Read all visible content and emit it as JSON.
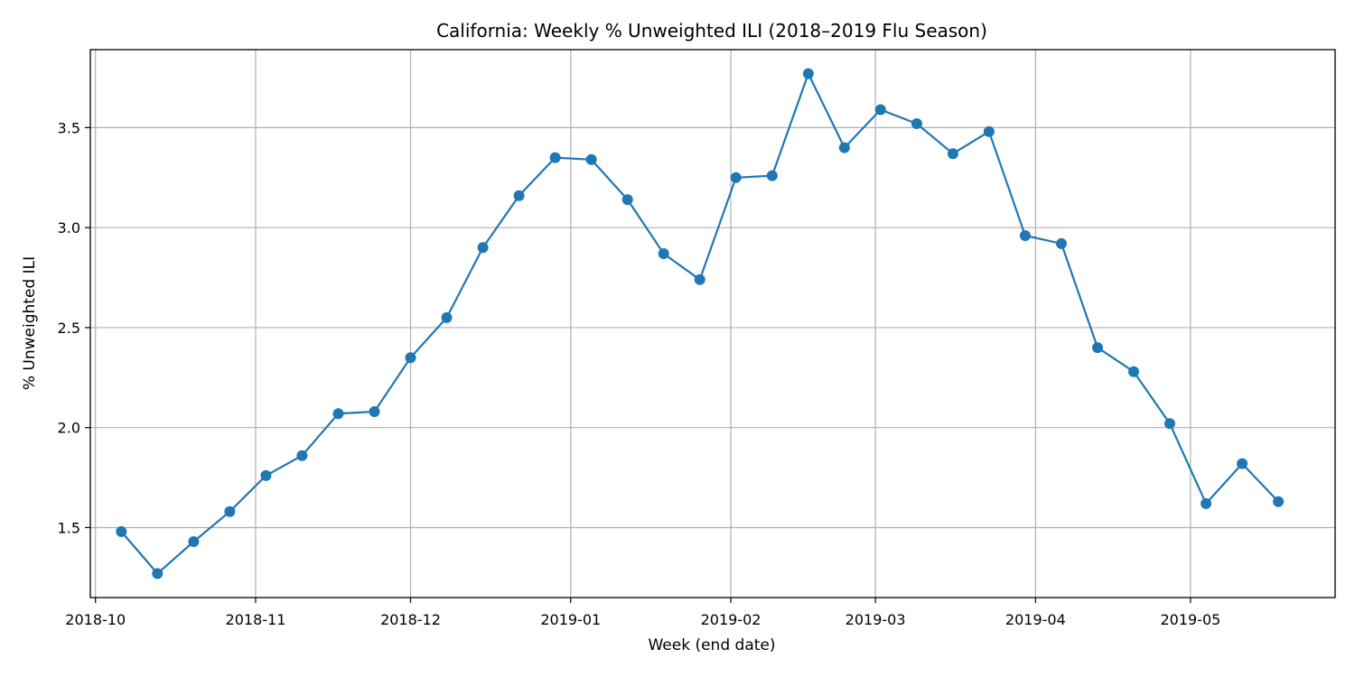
{
  "chart_data": {
    "type": "line",
    "title": "California: Weekly % Unweighted ILI (2018–2019 Flu Season)",
    "xlabel": "Week (end date)",
    "ylabel": "% Unweighted ILI",
    "x_tick_labels": [
      "2018-10",
      "2018-11",
      "2018-12",
      "2019-01",
      "2019-02",
      "2019-03",
      "2019-04",
      "2019-05"
    ],
    "x_tick_dates": [
      "2018-10-01",
      "2018-11-01",
      "2018-12-01",
      "2019-01-01",
      "2019-02-01",
      "2019-03-01",
      "2019-04-01",
      "2019-05-01"
    ],
    "y_ticks": [
      1.5,
      2.0,
      2.5,
      3.0,
      3.5
    ],
    "y_tick_labels": [
      "1.5",
      "2.0",
      "2.5",
      "3.0",
      "3.5"
    ],
    "xlim": [
      "2018-09-30",
      "2019-05-29"
    ],
    "ylim": [
      1.15,
      3.89
    ],
    "grid": true,
    "legend": false,
    "marker": "circle",
    "color": "#1f77b4",
    "series": [
      {
        "x": [
          "2018-10-06",
          "2018-10-13",
          "2018-10-20",
          "2018-10-27",
          "2018-11-03",
          "2018-11-10",
          "2018-11-17",
          "2018-11-24",
          "2018-12-01",
          "2018-12-08",
          "2018-12-15",
          "2018-12-22",
          "2018-12-29",
          "2019-01-05",
          "2019-01-12",
          "2019-01-19",
          "2019-01-26",
          "2019-02-02",
          "2019-02-09",
          "2019-02-16",
          "2019-02-23",
          "2019-03-02",
          "2019-03-09",
          "2019-03-16",
          "2019-03-23",
          "2019-03-30",
          "2019-04-06",
          "2019-04-13",
          "2019-04-20",
          "2019-04-27",
          "2019-05-04",
          "2019-05-11",
          "2019-05-18"
        ],
        "values": [
          1.48,
          1.27,
          1.43,
          1.58,
          1.76,
          1.86,
          2.07,
          2.08,
          2.35,
          2.55,
          2.9,
          3.16,
          3.35,
          3.34,
          3.14,
          2.87,
          2.74,
          3.25,
          3.26,
          3.77,
          3.4,
          3.59,
          3.52,
          3.37,
          3.48,
          2.96,
          2.92,
          2.4,
          2.28,
          2.02,
          1.62,
          1.82,
          1.63
        ]
      }
    ]
  }
}
